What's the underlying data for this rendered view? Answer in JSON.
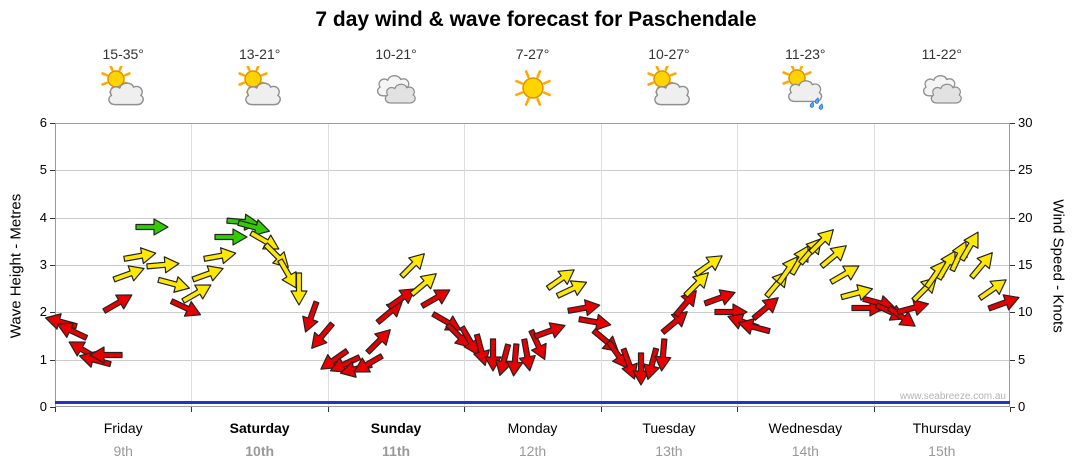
{
  "title": "7 day wind & wave forecast for Paschendale",
  "watermark": "www.seabreeze.com.au",
  "axes": {
    "left_label": "Wave Height - Metres",
    "right_label": "Wind Speed - Knots",
    "left_ticks": [
      0,
      1,
      2,
      3,
      4,
      5,
      6
    ],
    "right_ticks": [
      0,
      5,
      10,
      15,
      20,
      25,
      30
    ]
  },
  "days": [
    {
      "name": "Friday",
      "date": "9th",
      "temp": "15-35°",
      "icon": "sun-cloud",
      "bold": false
    },
    {
      "name": "Saturday",
      "date": "10th",
      "temp": "13-21°",
      "icon": "sun-cloud",
      "bold": true
    },
    {
      "name": "Sunday",
      "date": "11th",
      "temp": "10-21°",
      "icon": "cloud",
      "bold": true
    },
    {
      "name": "Monday",
      "date": "12th",
      "temp": "7-27°",
      "icon": "sun",
      "bold": false
    },
    {
      "name": "Tuesday",
      "date": "13th",
      "temp": "10-27°",
      "icon": "sun-cloud",
      "bold": false
    },
    {
      "name": "Wednesday",
      "date": "14th",
      "temp": "11-23°",
      "icon": "sun-cloud-rain",
      "bold": false
    },
    {
      "name": "Thursday",
      "date": "15th",
      "temp": "11-22°",
      "icon": "cloud",
      "bold": false
    }
  ],
  "chart_data": {
    "type": "line",
    "title": "7 day wind & wave forecast for Paschendale",
    "categories": [
      "Friday 9th",
      "Saturday 10th",
      "Sunday 11th",
      "Monday 12th",
      "Tuesday 13th",
      "Wednesday 14th",
      "Thursday 15th"
    ],
    "y_left": {
      "label": "Wave Height - Metres",
      "range": [
        0,
        6
      ]
    },
    "y_right": {
      "label": "Wind Speed - Knots",
      "range": [
        0,
        30
      ]
    },
    "grid": true,
    "series": [
      {
        "name": "Wind Speed",
        "unit": "knots",
        "render": "wind-arrows",
        "points_per_day": 12,
        "knots": [
          9,
          8,
          6,
          5,
          5.5,
          11,
          14,
          16,
          19,
          15,
          13,
          10.5,
          12,
          14,
          16,
          18,
          19.5,
          19,
          17.5,
          16,
          14,
          12.5,
          9.5,
          7.5,
          5,
          4.5,
          4,
          4.5,
          7,
          10,
          11.5,
          15,
          13,
          11.5,
          9,
          7.5,
          7,
          6,
          5.5,
          5,
          5,
          5.5,
          6.5,
          8,
          13.5,
          12.5,
          10.5,
          9,
          7,
          5.5,
          4.5,
          4,
          4.5,
          5.5,
          9,
          11,
          13,
          15,
          11.5,
          10,
          9,
          8.5,
          10.5,
          13,
          14.5,
          15.5,
          16.5,
          17.5,
          16,
          14,
          12,
          10.5,
          11,
          10,
          9.5,
          10.5,
          12.5,
          14,
          15,
          16,
          17,
          15,
          12.5,
          11
        ],
        "dir_deg": [
          195,
          205,
          210,
          195,
          180,
          330,
          340,
          350,
          0,
          355,
          15,
          25,
          330,
          340,
          350,
          0,
          5,
          15,
          30,
          45,
          60,
          90,
          110,
          130,
          145,
          155,
          165,
          150,
          315,
          320,
          325,
          315,
          320,
          330,
          30,
          45,
          60,
          75,
          90,
          105,
          95,
          80,
          65,
          340,
          325,
          335,
          350,
          10,
          40,
          55,
          70,
          90,
          105,
          95,
          320,
          310,
          315,
          325,
          340,
          0,
          200,
          195,
          320,
          310,
          305,
          300,
          310,
          315,
          320,
          330,
          345,
          0,
          15,
          25,
          35,
          345,
          315,
          305,
          300,
          295,
          300,
          310,
          325,
          340
        ],
        "color_rules": [
          {
            "max_knots": 12,
            "color": "#e80000"
          },
          {
            "max_knots": 18,
            "color": "#ffe800"
          },
          {
            "max_knots": 99,
            "color": "#33cc00"
          }
        ]
      },
      {
        "name": "Wave Height",
        "unit": "metres",
        "render": "line",
        "color": "#2233cc",
        "values": [
          0.1,
          0.1,
          0.1,
          0.1,
          0.1,
          0.1,
          0.1,
          0.1
        ]
      }
    ]
  }
}
